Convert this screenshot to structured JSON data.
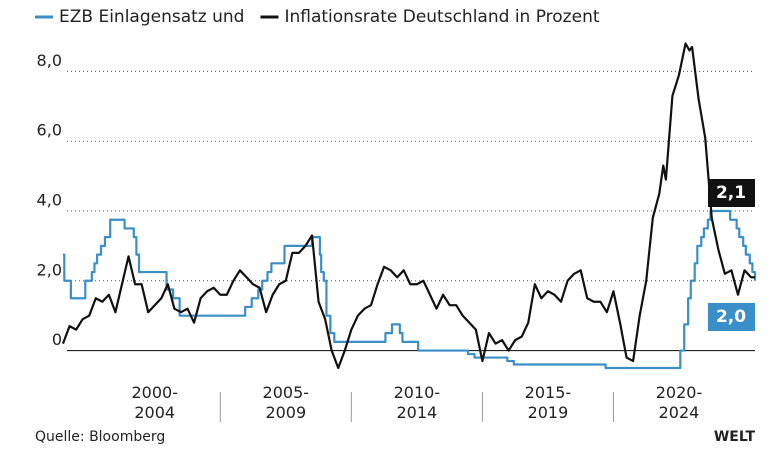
{
  "chart_data": {
    "type": "line",
    "source": "Quelle: Bloomberg",
    "logo": "WELT",
    "xlim": [
      1999,
      2025.4
    ],
    "ylim": [
      -0.7,
      8.9
    ],
    "xticks": [
      {
        "value": 2002.5,
        "label": "2000-\n2004"
      },
      {
        "value": 2007.5,
        "label": "2005-\n2009"
      },
      {
        "value": 2012.5,
        "label": "2010-\n2014"
      },
      {
        "value": 2017.5,
        "label": "2015-\n2019"
      },
      {
        "value": 2022.5,
        "label": "2020-\n2024"
      }
    ],
    "yticks": [
      {
        "value": 0,
        "label": "0"
      },
      {
        "value": 2,
        "label": "2,0"
      },
      {
        "value": 4,
        "label": "4,0"
      },
      {
        "value": 6,
        "label": "6,0"
      },
      {
        "value": 8,
        "label": "8,0"
      }
    ],
    "grid": true,
    "series": [
      {
        "name": "EZB Einlagensatz und",
        "color": "#3a8fc8",
        "drawstyle": "steps-post",
        "last_label": "2,0",
        "x": [
          1999.0,
          1999.05,
          1999.3,
          1999.85,
          2000.1,
          2000.2,
          2000.3,
          2000.45,
          2000.6,
          2000.8,
          2001.35,
          2001.7,
          2001.8,
          2001.9,
          2002.95,
          2003.2,
          2003.45,
          2005.95,
          2006.2,
          2006.45,
          2006.6,
          2006.8,
          2006.95,
          2007.45,
          2008.5,
          2008.8,
          2008.85,
          2008.95,
          2009.05,
          2009.2,
          2009.35,
          2011.3,
          2011.55,
          2011.85,
          2011.95,
          2012.55,
          2014.45,
          2014.7,
          2015.95,
          2016.2,
          2019.7,
          2022.55,
          2022.7,
          2022.85,
          2022.95,
          2023.1,
          2023.2,
          2023.35,
          2023.45,
          2023.6,
          2023.7,
          2024.45,
          2024.7,
          2024.8,
          2024.95,
          2025.05,
          2025.2,
          2025.3,
          2025.4
        ],
        "values": [
          2.75,
          2.0,
          1.5,
          2.0,
          2.25,
          2.5,
          2.75,
          3.0,
          3.25,
          3.75,
          3.5,
          3.25,
          2.75,
          2.25,
          1.75,
          1.5,
          1.0,
          1.25,
          1.5,
          1.75,
          2.0,
          2.25,
          2.5,
          3.0,
          3.25,
          2.75,
          2.25,
          2.0,
          1.0,
          0.5,
          0.25,
          0.5,
          0.75,
          0.5,
          0.25,
          0.0,
          -0.1,
          -0.2,
          -0.3,
          -0.4,
          -0.5,
          0.0,
          0.75,
          1.5,
          2.0,
          2.5,
          3.0,
          3.25,
          3.5,
          3.75,
          4.0,
          3.75,
          3.5,
          3.25,
          3.0,
          2.75,
          2.5,
          2.25,
          2.0
        ]
      },
      {
        "name": "Inflationsrate Deutschland in Prozent",
        "color": "#111111",
        "last_label": "2,1",
        "x": [
          1999.0,
          1999.25,
          1999.5,
          1999.75,
          2000.0,
          2000.25,
          2000.5,
          2000.75,
          2001.0,
          2001.25,
          2001.5,
          2001.75,
          2002.0,
          2002.25,
          2002.5,
          2002.75,
          2003.0,
          2003.25,
          2003.5,
          2003.75,
          2004.0,
          2004.25,
          2004.5,
          2004.75,
          2005.0,
          2005.25,
          2005.5,
          2005.75,
          2006.0,
          2006.25,
          2006.5,
          2006.75,
          2007.0,
          2007.25,
          2007.5,
          2007.75,
          2008.0,
          2008.25,
          2008.5,
          2008.75,
          2009.0,
          2009.25,
          2009.5,
          2009.75,
          2010.0,
          2010.25,
          2010.5,
          2010.75,
          2011.0,
          2011.25,
          2011.5,
          2011.75,
          2012.0,
          2012.25,
          2012.5,
          2012.75,
          2013.0,
          2013.25,
          2013.5,
          2013.75,
          2014.0,
          2014.25,
          2014.5,
          2014.75,
          2015.0,
          2015.25,
          2015.5,
          2015.75,
          2016.0,
          2016.25,
          2016.5,
          2016.75,
          2017.0,
          2017.25,
          2017.5,
          2017.75,
          2018.0,
          2018.25,
          2018.5,
          2018.75,
          2019.0,
          2019.25,
          2019.5,
          2019.75,
          2020.0,
          2020.25,
          2020.5,
          2020.75,
          2021.0,
          2021.25,
          2021.5,
          2021.75,
          2021.9,
          2022.0,
          2022.25,
          2022.5,
          2022.75,
          2022.9,
          2023.0,
          2023.25,
          2023.5,
          2023.75,
          2024.0,
          2024.25,
          2024.5,
          2024.75,
          2025.0,
          2025.25,
          2025.4
        ],
        "values": [
          0.2,
          0.7,
          0.6,
          0.9,
          1.0,
          1.5,
          1.4,
          1.6,
          1.1,
          1.9,
          2.7,
          1.9,
          1.9,
          1.1,
          1.3,
          1.5,
          1.9,
          1.2,
          1.1,
          1.2,
          0.8,
          1.5,
          1.7,
          1.8,
          1.6,
          1.6,
          2.0,
          2.3,
          2.1,
          1.9,
          1.8,
          1.1,
          1.6,
          1.9,
          2.0,
          2.8,
          2.8,
          3.0,
          3.3,
          1.4,
          0.9,
          0.0,
          -0.5,
          0.0,
          0.6,
          1.0,
          1.2,
          1.3,
          1.9,
          2.4,
          2.3,
          2.1,
          2.3,
          1.9,
          1.9,
          2.0,
          1.6,
          1.2,
          1.6,
          1.3,
          1.3,
          1.0,
          0.8,
          0.6,
          -0.3,
          0.5,
          0.2,
          0.3,
          0.0,
          0.3,
          0.4,
          0.8,
          1.9,
          1.5,
          1.7,
          1.6,
          1.4,
          2.0,
          2.2,
          2.3,
          1.5,
          1.4,
          1.4,
          1.1,
          1.7,
          0.8,
          -0.2,
          -0.3,
          1.0,
          2.0,
          3.8,
          4.5,
          5.3,
          4.9,
          7.3,
          7.9,
          8.8,
          8.6,
          8.7,
          7.2,
          6.1,
          3.8,
          2.9,
          2.2,
          2.3,
          1.6,
          2.3,
          2.1,
          2.1
        ]
      }
    ]
  }
}
